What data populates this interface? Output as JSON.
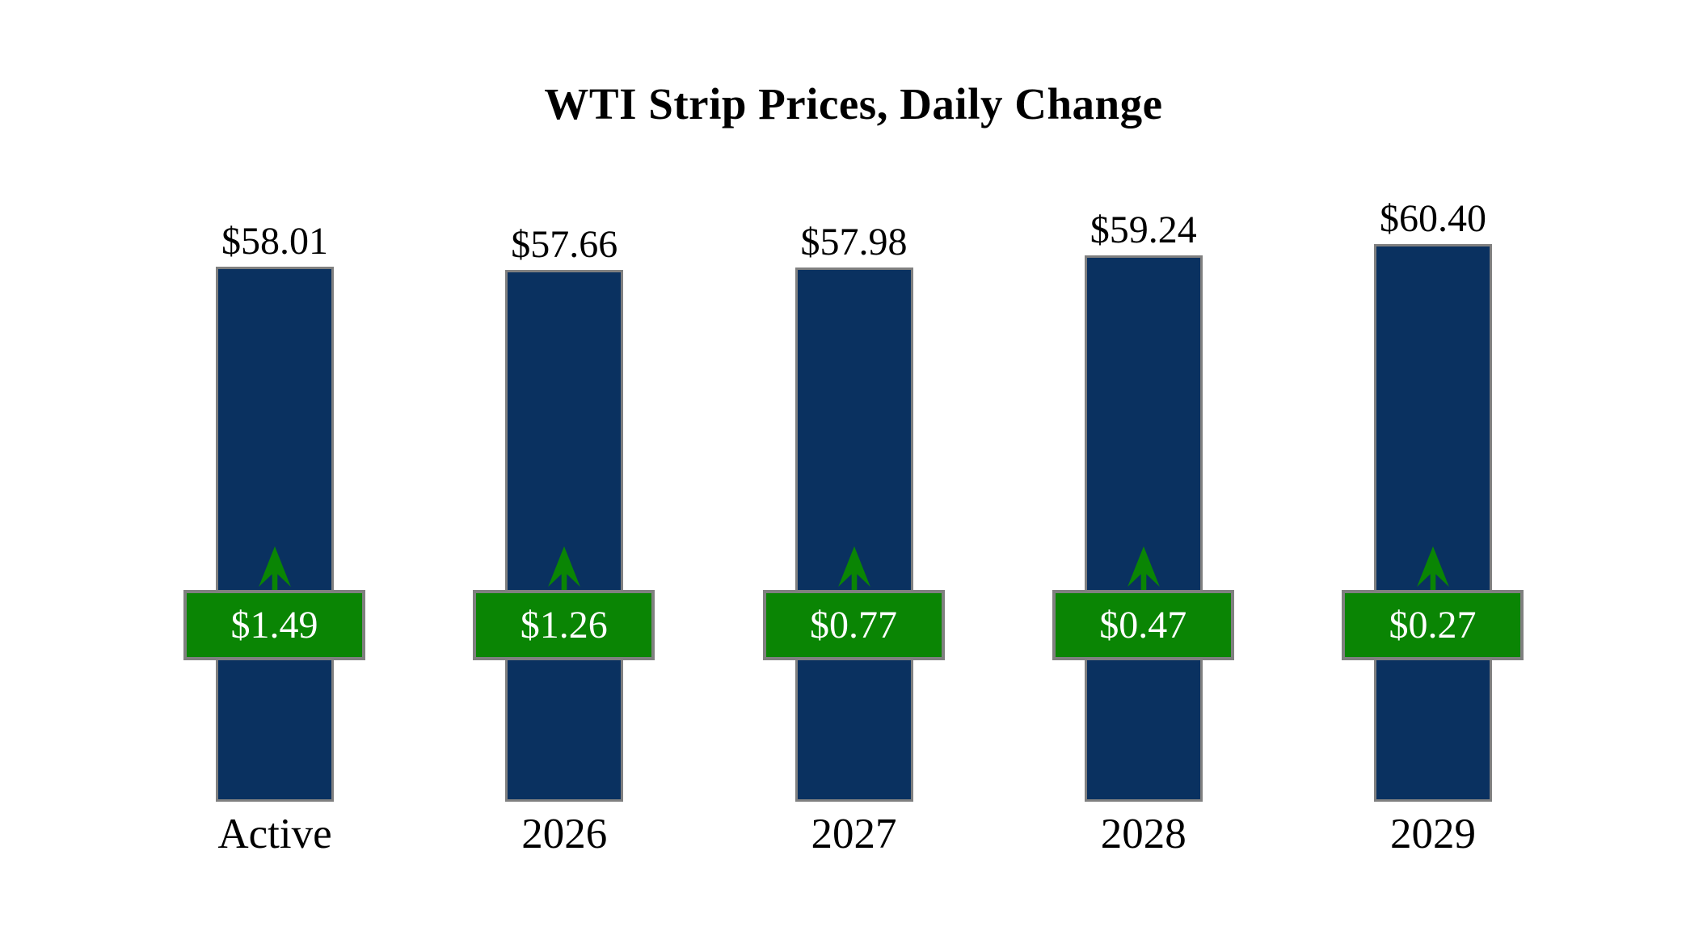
{
  "chart_data": {
    "type": "bar",
    "title": "WTI Strip Prices, Daily Change",
    "categories": [
      "Active",
      "2026",
      "2027",
      "2028",
      "2029"
    ],
    "series": [
      {
        "name": "Strip Price",
        "values": [
          58.01,
          57.66,
          57.98,
          59.24,
          60.4
        ]
      },
      {
        "name": "Daily Change",
        "values": [
          1.49,
          1.26,
          0.77,
          0.47,
          0.27
        ]
      }
    ],
    "value_labels": [
      "$58.01",
      "$57.66",
      "$57.98",
      "$59.24",
      "$60.40"
    ],
    "change_labels": [
      "$1.49",
      "$1.26",
      "$0.77",
      "$0.47",
      "$0.27"
    ],
    "change_directions": [
      "up",
      "up",
      "up",
      "up",
      "up"
    ],
    "xlabel": "",
    "ylabel": "",
    "axes_visible": false,
    "grid": false,
    "legend_position": "none"
  },
  "bars": [
    {
      "label": "Active",
      "price": 58.01,
      "price_label": "$58.01",
      "change": 1.49,
      "change_label": "$1.49",
      "direction": "up"
    },
    {
      "label": "2026",
      "price": 57.66,
      "price_label": "$57.66",
      "change": 1.26,
      "change_label": "$1.26",
      "direction": "up"
    },
    {
      "label": "2027",
      "price": 57.98,
      "price_label": "$57.98",
      "change": 0.77,
      "change_label": "$0.77",
      "direction": "up"
    },
    {
      "label": "2028",
      "price": 59.24,
      "price_label": "$59.24",
      "change": 0.47,
      "change_label": "$0.47",
      "direction": "up"
    },
    {
      "label": "2029",
      "price": 60.4,
      "price_label": "$60.40",
      "change": 0.27,
      "change_label": "$0.27",
      "direction": "up"
    }
  ],
  "colors": {
    "background": "#ffffff",
    "bar_fill": "#0a3160",
    "badge_fill": "#0a8504",
    "arrow": "#0a8504",
    "border_gray": "#808080",
    "badge_text": "#ffffff",
    "title_text": "#000000"
  }
}
